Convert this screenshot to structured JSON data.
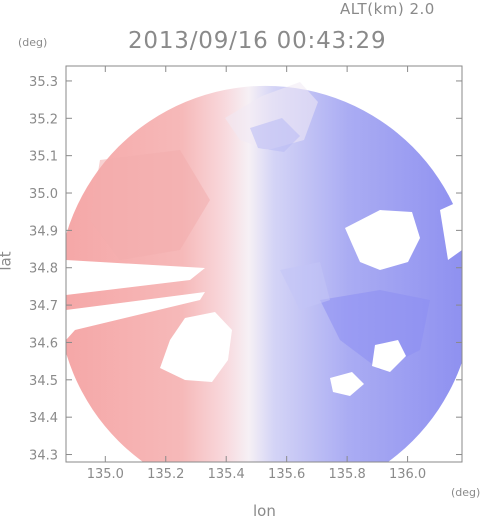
{
  "header": {
    "altitude": "ALT(km) 2.0",
    "timestamp": "2013/09/16 00:43:29"
  },
  "chart_data": {
    "type": "heatmap",
    "title": "2013/09/16 00:43:29",
    "xlabel": "lon",
    "ylabel": "lat",
    "x_unit": "(deg)",
    "y_unit": "(deg)",
    "xlim": [
      134.87,
      136.18
    ],
    "ylim": [
      34.28,
      35.34
    ],
    "x_ticks": [
      135.0,
      135.2,
      135.4,
      135.6,
      135.8,
      136.0
    ],
    "x_tick_labels": [
      "135.0",
      "135.2",
      "135.4",
      "135.6",
      "135.8",
      "136.0"
    ],
    "y_ticks": [
      34.3,
      34.4,
      34.5,
      34.6,
      34.7,
      34.8,
      34.9,
      35.0,
      35.1,
      35.2,
      35.3
    ],
    "y_tick_labels": [
      "34.3",
      "34.4",
      "34.5",
      "34.6",
      "34.7",
      "34.8",
      "34.9",
      "35.0",
      "35.1",
      "35.2",
      "35.3"
    ],
    "grid": false,
    "radar_center": [
      135.53,
      34.73
    ],
    "colors": {
      "positive": "#f2a0a0",
      "zero": "#f4f0f6",
      "negative": "#8a8cf0",
      "axis": "#8a8a8a"
    }
  }
}
